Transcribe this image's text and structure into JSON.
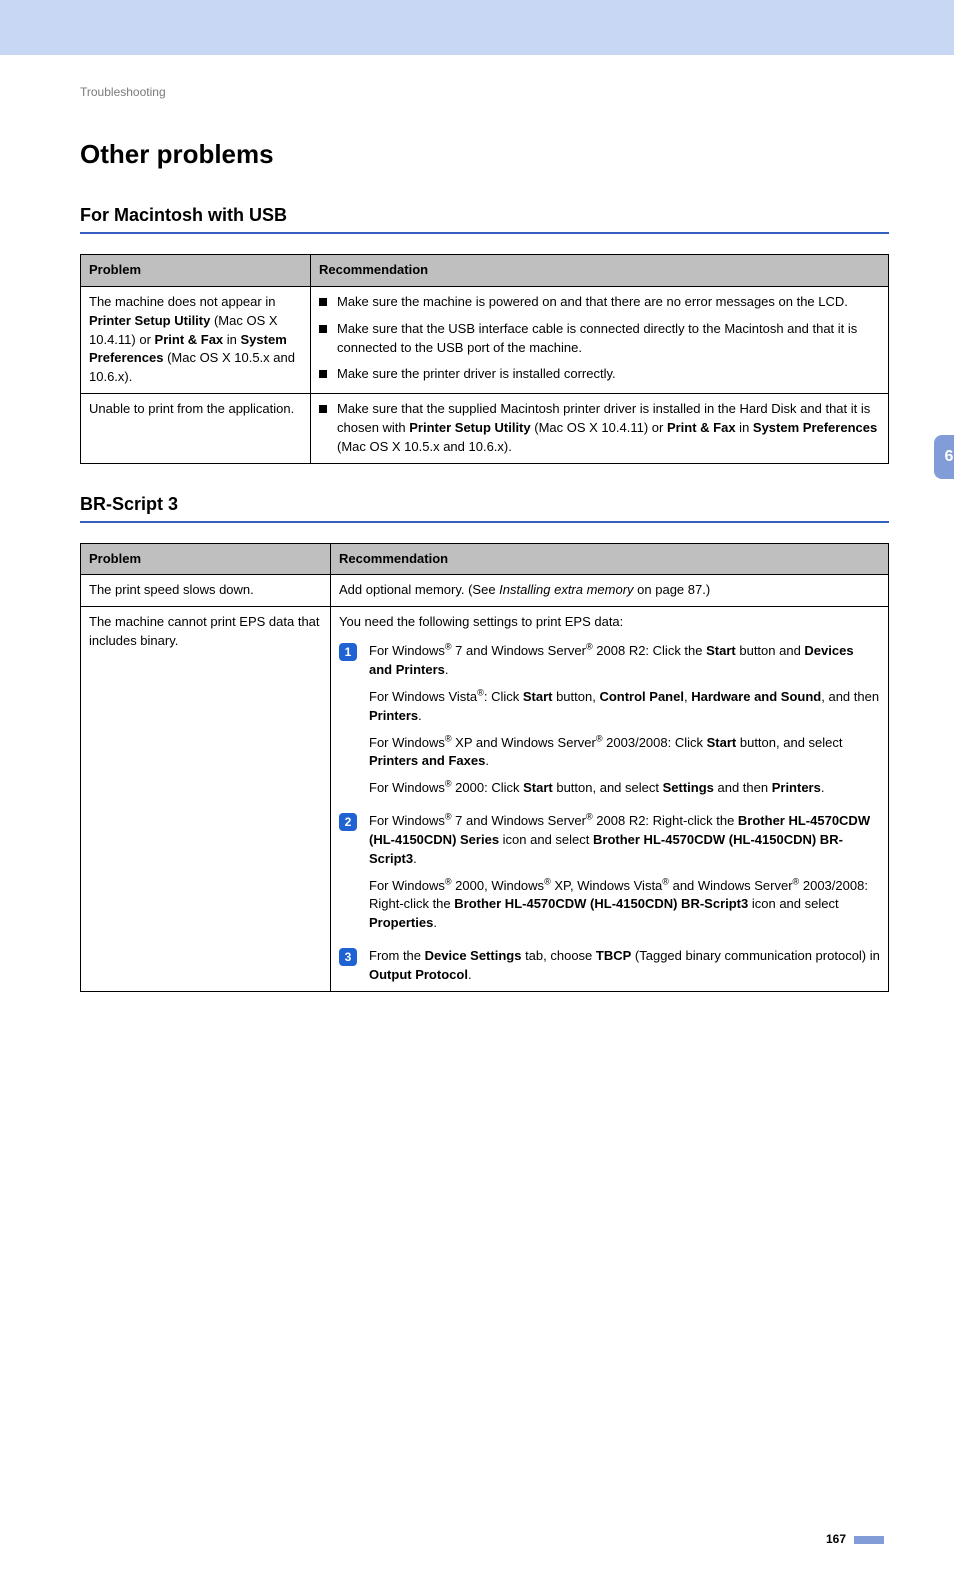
{
  "colors": {
    "top_band": "#c7d7f4",
    "rule": "#345fc1",
    "table_header_bg": "#bfbfbf",
    "badge_bg": "#1e63d1",
    "tab_bg": "#819cd6"
  },
  "breadcrumb": "Troubleshooting",
  "page_title": "Other problems",
  "chapter_tab": "6",
  "page_number": "167",
  "section1": {
    "title": "For Macintosh with USB",
    "headers": {
      "problem": "Problem",
      "recommendation": "Recommendation"
    },
    "rows": [
      {
        "problem_html": "The machine does not appear in <span class='b'>Printer Setup Utility</span> (Mac OS X 10.4.11) or <span class='b'>Print & Fax</span> in <span class='b'>System Preferences</span> (Mac OS X 10.5.x and 10.6.x).",
        "recs": [
          "Make sure the machine is powered on and that there are no error messages on the LCD.",
          "Make sure that the USB interface cable is connected directly to the Macintosh and that it is connected to the USB port of the machine.",
          "Make sure the printer driver is installed correctly."
        ]
      },
      {
        "problem_html": "Unable to print from the application.",
        "recs_html": [
          "Make sure that the supplied Macintosh printer driver is installed in the Hard Disk and that it is chosen with <span class='b'>Printer Setup Utility</span> (Mac OS X 10.4.11) or <span class='b'>Print & Fax</span> in <span class='b'>System Preferences</span> (Mac OS X 10.5.x and 10.6.x)."
        ]
      }
    ]
  },
  "section2": {
    "title": "BR-Script 3",
    "headers": {
      "problem": "Problem",
      "recommendation": "Recommendation"
    },
    "rows": [
      {
        "problem_html": "The print speed slows down.",
        "rec_html": "Add optional memory. (See <span class='i'>Installing extra memory</span> on page 87.)"
      },
      {
        "problem_html": "The machine cannot print EPS data that includes binary.",
        "intro": "You need the following settings to print EPS data:",
        "steps": [
          {
            "num": "1",
            "paras_html": [
              "For Windows<sup>®</sup> 7 and Windows Server<sup>®</sup> 2008 R2: Click the <span class='b'>Start</span> button and <span class='b'>Devices and Printers</span>.",
              "For Windows Vista<sup>®</sup>: Click <span class='b'>Start</span> button, <span class='b'>Control Panel</span>, <span class='b'>Hardware and Sound</span>, and then <span class='b'>Printers</span>.",
              "For Windows<sup>®</sup> XP and Windows Server<sup>®</sup> 2003/2008: Click <span class='b'>Start</span> button, and select <span class='b'>Printers and Faxes</span>.",
              "For Windows<sup>®</sup> 2000: Click <span class='b'>Start</span> button, and select <span class='b'>Settings</span> and then <span class='b'>Printers</span>."
            ]
          },
          {
            "num": "2",
            "paras_html": [
              "For Windows<sup>®</sup> 7 and Windows Server<sup>®</sup> 2008 R2: Right-click the <span class='b'>Brother HL-4570CDW (HL-4150CDN) Series</span> icon and select <span class='b'>Brother HL-4570CDW (HL-4150CDN) BR-Script3</span>.",
              "For Windows<sup>®</sup> 2000, Windows<sup>®</sup> XP, Windows Vista<sup>®</sup> and Windows Server<sup>®</sup> 2003/2008: Right-click the <span class='b'>Brother HL-4570CDW (HL-4150CDN) BR-Script3</span> icon and select <span class='b'>Properties</span>."
            ]
          },
          {
            "num": "3",
            "paras_html": [
              "From the <span class='b'>Device Settings</span> tab, choose <span class='b'>TBCP</span> (Tagged binary communication protocol) in <span class='b'>Output Protocol</span>."
            ]
          }
        ]
      }
    ]
  }
}
